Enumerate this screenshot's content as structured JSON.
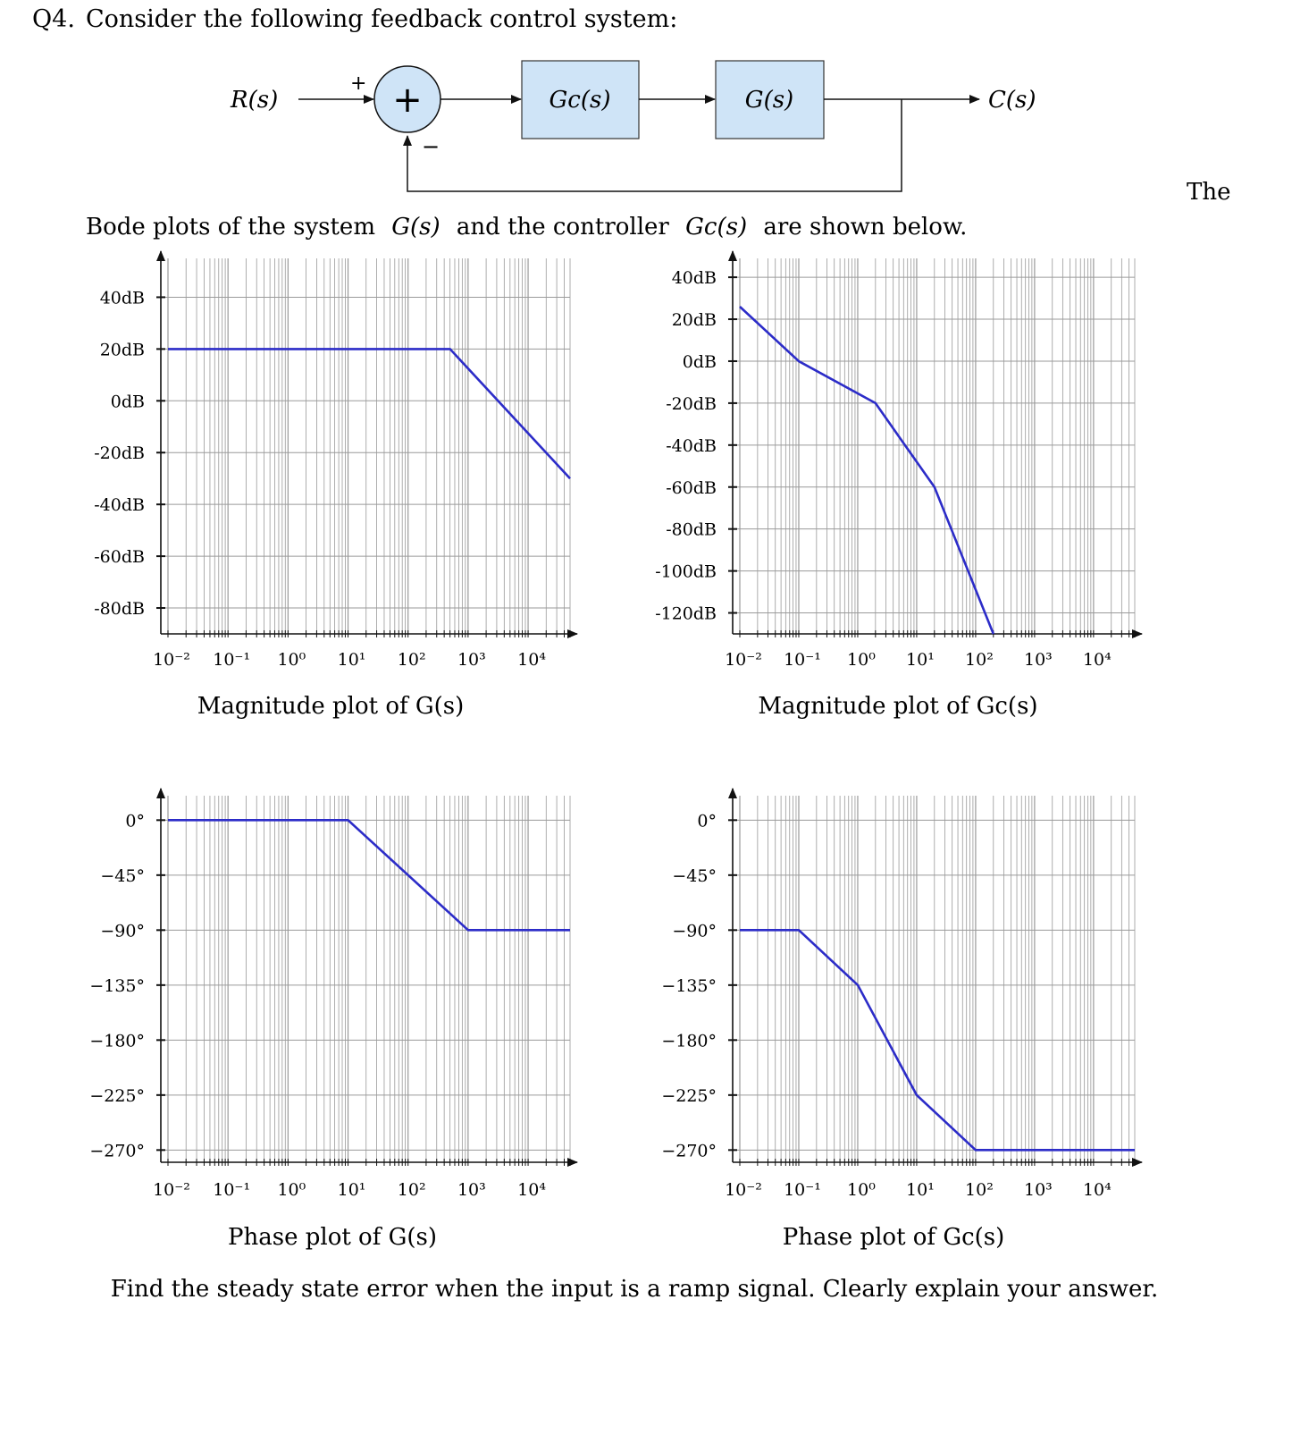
{
  "question": {
    "number": "Q4.",
    "prompt": "Consider the following feedback control system:",
    "bode_intro_pre": "Bode plots of the system",
    "bode_intro_and": "and the controller",
    "bode_intro_post": "are shown below.",
    "side_text": "The",
    "task": "Find the steady state error when the input is a ramp signal. Clearly explain your answer."
  },
  "diagram": {
    "input_label": "R(s)",
    "plus_sign": "+",
    "minus_sign": "−",
    "summing_symbol": "+",
    "controller_block": "Gc(s)",
    "plant_block": "G(s)",
    "output_label": "C(s)",
    "block_fill": "#cfe4f7"
  },
  "style": {
    "curve_color": "#2c2cc8",
    "grid_color": "#9a9a9a"
  },
  "chart_data": [
    {
      "id": "magG",
      "type": "line",
      "title": "Magnitude plot of G(s)",
      "x_scale": "log",
      "xlim": [
        0.01,
        50000
      ],
      "x_ticks": [
        {
          "v": 0.01,
          "l": "10−2"
        },
        {
          "v": 0.1,
          "l": "10−1"
        },
        {
          "v": 1,
          "l": "100"
        },
        {
          "v": 10,
          "l": "101"
        },
        {
          "v": 100,
          "l": "102"
        },
        {
          "v": 1000,
          "l": "103"
        },
        {
          "v": 10000,
          "l": "104"
        }
      ],
      "ylim": [
        -90,
        55
      ],
      "y_ticks": [
        {
          "v": 40,
          "l": "40dB"
        },
        {
          "v": 20,
          "l": "20dB"
        },
        {
          "v": 0,
          "l": "0dB"
        },
        {
          "v": -20,
          "l": "-20dB"
        },
        {
          "v": -40,
          "l": "-40dB"
        },
        {
          "v": -60,
          "l": "-60dB"
        },
        {
          "v": -80,
          "l": "-80dB"
        }
      ],
      "series": [
        {
          "x": [
            0.01,
            500,
            50000
          ],
          "y": [
            20,
            20,
            -30
          ]
        }
      ]
    },
    {
      "id": "magGc",
      "type": "line",
      "title": "Magnitude plot of Gc(s)",
      "x_scale": "log",
      "xlim": [
        0.01,
        50000
      ],
      "x_ticks": [
        {
          "v": 0.01,
          "l": "10−2"
        },
        {
          "v": 0.1,
          "l": "10−1"
        },
        {
          "v": 1,
          "l": "100"
        },
        {
          "v": 10,
          "l": "101"
        },
        {
          "v": 100,
          "l": "102"
        },
        {
          "v": 1000,
          "l": "103"
        },
        {
          "v": 10000,
          "l": "104"
        }
      ],
      "ylim": [
        -130,
        49
      ],
      "y_ticks": [
        {
          "v": 40,
          "l": "40dB"
        },
        {
          "v": 20,
          "l": "20dB"
        },
        {
          "v": 0,
          "l": "0dB"
        },
        {
          "v": -20,
          "l": "-20dB"
        },
        {
          "v": -40,
          "l": "-40dB"
        },
        {
          "v": -60,
          "l": "-60dB"
        },
        {
          "v": -80,
          "l": "-80dB"
        },
        {
          "v": -100,
          "l": "-100dB"
        },
        {
          "v": -120,
          "l": "-120dB"
        }
      ],
      "series": [
        {
          "x": [
            0.01,
            0.1,
            2,
            20,
            200
          ],
          "y": [
            26,
            0,
            -20,
            -60,
            -130
          ]
        }
      ]
    },
    {
      "id": "phaseG",
      "type": "line",
      "title": "Phase plot of G(s)",
      "x_scale": "log",
      "xlim": [
        0.01,
        50000
      ],
      "x_ticks": [
        {
          "v": 0.01,
          "l": "10−2"
        },
        {
          "v": 0.1,
          "l": "10−1"
        },
        {
          "v": 1,
          "l": "100"
        },
        {
          "v": 10,
          "l": "101"
        },
        {
          "v": 100,
          "l": "102"
        },
        {
          "v": 1000,
          "l": "103"
        },
        {
          "v": 10000,
          "l": "104"
        }
      ],
      "ylim": [
        -280,
        20
      ],
      "y_ticks": [
        {
          "v": 0,
          "l": "0°"
        },
        {
          "v": -45,
          "l": "−45°"
        },
        {
          "v": -90,
          "l": "−90°"
        },
        {
          "v": -135,
          "l": "−135°"
        },
        {
          "v": -180,
          "l": "−180°"
        },
        {
          "v": -225,
          "l": "−225°"
        },
        {
          "v": -270,
          "l": "−270°"
        }
      ],
      "series": [
        {
          "x": [
            0.01,
            10,
            1000,
            50000
          ],
          "y": [
            0,
            0,
            -90,
            -90
          ]
        }
      ]
    },
    {
      "id": "phaseGc",
      "type": "line",
      "title": "Phase plot of Gc(s)",
      "x_scale": "log",
      "xlim": [
        0.01,
        50000
      ],
      "x_ticks": [
        {
          "v": 0.01,
          "l": "10−2"
        },
        {
          "v": 0.1,
          "l": "10−1"
        },
        {
          "v": 1,
          "l": "100"
        },
        {
          "v": 10,
          "l": "101"
        },
        {
          "v": 100,
          "l": "102"
        },
        {
          "v": 1000,
          "l": "103"
        },
        {
          "v": 10000,
          "l": "104"
        }
      ],
      "ylim": [
        -280,
        20
      ],
      "y_ticks": [
        {
          "v": 0,
          "l": "0°"
        },
        {
          "v": -45,
          "l": "−45°"
        },
        {
          "v": -90,
          "l": "−90°"
        },
        {
          "v": -135,
          "l": "−135°"
        },
        {
          "v": -180,
          "l": "−180°"
        },
        {
          "v": -225,
          "l": "−225°"
        },
        {
          "v": -270,
          "l": "−270°"
        }
      ],
      "series": [
        {
          "x": [
            0.01,
            0.1,
            1,
            10,
            100,
            50000
          ],
          "y": [
            -90,
            -90,
            -135,
            -225,
            -270,
            -270
          ]
        }
      ]
    }
  ]
}
